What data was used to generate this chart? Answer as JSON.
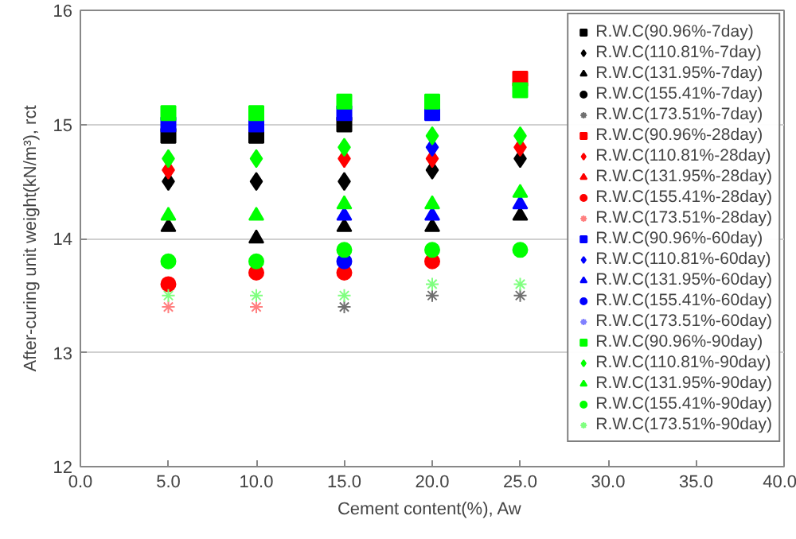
{
  "chart_data": {
    "type": "scatter",
    "xlabel": "Cement content(%),  Aw",
    "ylabel": "After-curing unit weight(kN/m³), rct",
    "x": [
      5,
      10,
      15,
      20,
      25
    ],
    "xlim": [
      0,
      40
    ],
    "xticks": [
      {
        "value": 0,
        "label": "0.0"
      },
      {
        "value": 5,
        "label": "5.0"
      },
      {
        "value": 10,
        "label": "10.0"
      },
      {
        "value": 15,
        "label": "15.0"
      },
      {
        "value": 20,
        "label": "20.0"
      },
      {
        "value": 25,
        "label": "25.0"
      },
      {
        "value": 30,
        "label": "30.0"
      },
      {
        "value": 35,
        "label": "35.0"
      },
      {
        "value": 40,
        "label": "40.0"
      }
    ],
    "ylim": [
      12,
      16
    ],
    "yticks": [
      12,
      13,
      14,
      15,
      16
    ],
    "grid": "y",
    "legend": "top right",
    "series": [
      {
        "name": "R.W.C(90.96%-7day)",
        "color": "#000000",
        "marker": "square",
        "values": [
          14.9,
          14.9,
          15.0,
          null,
          null
        ]
      },
      {
        "name": "R.W.C(110.81%-7day)",
        "color": "#000000",
        "marker": "diamond",
        "values": [
          14.5,
          14.5,
          14.5,
          14.6,
          14.7
        ]
      },
      {
        "name": "R.W.C(131.95%-7day)",
        "color": "#000000",
        "marker": "triangle",
        "values": [
          14.1,
          14.0,
          14.1,
          14.1,
          14.2
        ]
      },
      {
        "name": "R.W.C(155.41%-7day)",
        "color": "#000000",
        "marker": "circle",
        "values": [
          null,
          null,
          null,
          null,
          null
        ]
      },
      {
        "name": "R.W.C(173.51%-7day)",
        "color": "#707070",
        "marker": "cross",
        "values": [
          null,
          null,
          13.4,
          13.5,
          13.5
        ]
      },
      {
        "name": "R.W.C(90.96%-28day)",
        "color": "#ff0000",
        "marker": "square",
        "values": [
          null,
          null,
          null,
          null,
          15.4
        ]
      },
      {
        "name": "R.W.C(110.81%-28day)",
        "color": "#ff0000",
        "marker": "diamond",
        "values": [
          14.6,
          null,
          14.7,
          14.7,
          14.8
        ]
      },
      {
        "name": "R.W.C(131.95%-28day)",
        "color": "#ff0000",
        "marker": "triangle",
        "values": [
          null,
          null,
          null,
          null,
          null
        ]
      },
      {
        "name": "R.W.C(155.41%-28day)",
        "color": "#ff0000",
        "marker": "circle",
        "values": [
          13.6,
          13.7,
          13.7,
          13.8,
          null
        ]
      },
      {
        "name": "R.W.C(173.51%-28day)",
        "color": "#ff8080",
        "marker": "cross",
        "values": [
          13.4,
          13.4,
          null,
          null,
          null
        ]
      },
      {
        "name": "R.W.C(90.96%-60day)",
        "color": "#0000ff",
        "marker": "square",
        "values": [
          15.0,
          15.0,
          15.1,
          15.1,
          null
        ]
      },
      {
        "name": "R.W.C(110.81%-60day)",
        "color": "#0000ff",
        "marker": "diamond",
        "values": [
          null,
          null,
          null,
          14.8,
          null
        ]
      },
      {
        "name": "R.W.C(131.95%-60day)",
        "color": "#0000ff",
        "marker": "triangle",
        "values": [
          null,
          null,
          14.2,
          14.2,
          14.3
        ]
      },
      {
        "name": "R.W.C(155.41%-60day)",
        "color": "#0000ff",
        "marker": "circle",
        "values": [
          null,
          null,
          13.8,
          null,
          null
        ]
      },
      {
        "name": "R.W.C(173.51%-60day)",
        "color": "#8080ff",
        "marker": "cross",
        "values": [
          null,
          null,
          null,
          null,
          null
        ]
      },
      {
        "name": "R.W.C(90.96%-90day)",
        "color": "#00ff00",
        "marker": "square",
        "values": [
          15.1,
          15.1,
          15.2,
          15.2,
          15.3
        ]
      },
      {
        "name": "R.W.C(110.81%-90day)",
        "color": "#00ff00",
        "marker": "diamond",
        "values": [
          14.7,
          14.7,
          14.8,
          14.9,
          14.9
        ]
      },
      {
        "name": "R.W.C(131.95%-90day)",
        "color": "#00ff00",
        "marker": "triangle",
        "values": [
          14.2,
          14.2,
          14.3,
          14.3,
          14.4
        ]
      },
      {
        "name": "R.W.C(155.41%-90day)",
        "color": "#00ff00",
        "marker": "circle",
        "values": [
          13.8,
          13.8,
          13.9,
          13.9,
          13.9
        ]
      },
      {
        "name": "R.W.C(173.51%-90day)",
        "color": "#80ff80",
        "marker": "cross",
        "values": [
          13.5,
          13.5,
          13.5,
          13.6,
          13.6
        ]
      }
    ]
  }
}
